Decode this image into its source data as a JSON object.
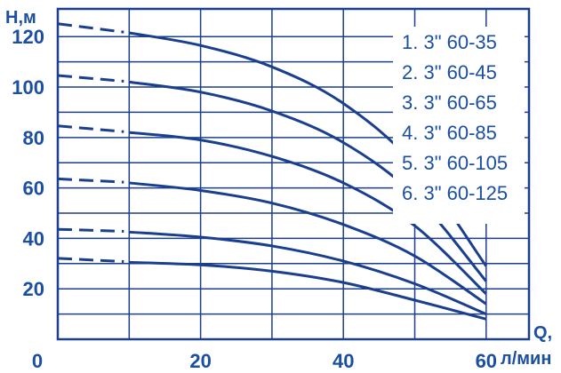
{
  "chart_data": {
    "type": "line",
    "title": "",
    "ylabel": "H,м",
    "xlabel_top": "Q,",
    "xlabel_bottom": "л/мин",
    "x_ticks": [
      "0",
      "20",
      "40",
      "60"
    ],
    "y_ticks": [
      "20",
      "40",
      "60",
      "80",
      "100",
      "120"
    ],
    "xlim": [
      0,
      66
    ],
    "ylim": [
      0,
      131
    ],
    "grid": true,
    "legend_position": "top-right",
    "line_color": "#1b3f8f",
    "text_color": "#1b4fa0",
    "series": [
      {
        "name": "1. 3\" 60-35",
        "shutoff": 31.5,
        "x": [
          10,
          20,
          30,
          40,
          50,
          60
        ],
        "y": [
          30.5,
          29.5,
          27,
          22.5,
          15.5,
          8
        ]
      },
      {
        "name": "2. 3\" 60-45",
        "shutoff": 43,
        "x": [
          10,
          20,
          30,
          40,
          50,
          60
        ],
        "y": [
          42.5,
          40.5,
          37,
          31,
          22,
          10
        ]
      },
      {
        "name": "3. 3\" 60-65",
        "shutoff": 63,
        "x": [
          10,
          20,
          30,
          40,
          50,
          60
        ],
        "y": [
          62,
          59,
          54,
          45.5,
          33,
          14
        ]
      },
      {
        "name": "4. 3\" 60-85",
        "shutoff": 84,
        "x": [
          10,
          20,
          30,
          40,
          50,
          60
        ],
        "y": [
          82,
          79,
          72.5,
          62,
          45,
          18
        ]
      },
      {
        "name": "5. 3\" 60-105",
        "shutoff": 104,
        "x": [
          10,
          20,
          30,
          40,
          50,
          60
        ],
        "y": [
          102,
          98,
          90.5,
          78,
          57,
          23
        ]
      },
      {
        "name": "6. 3\" 60-125",
        "shutoff": 124.5,
        "x": [
          10,
          20,
          30,
          40,
          50,
          60
        ],
        "y": [
          121.5,
          116.5,
          108,
          93.5,
          69,
          29
        ]
      }
    ]
  }
}
